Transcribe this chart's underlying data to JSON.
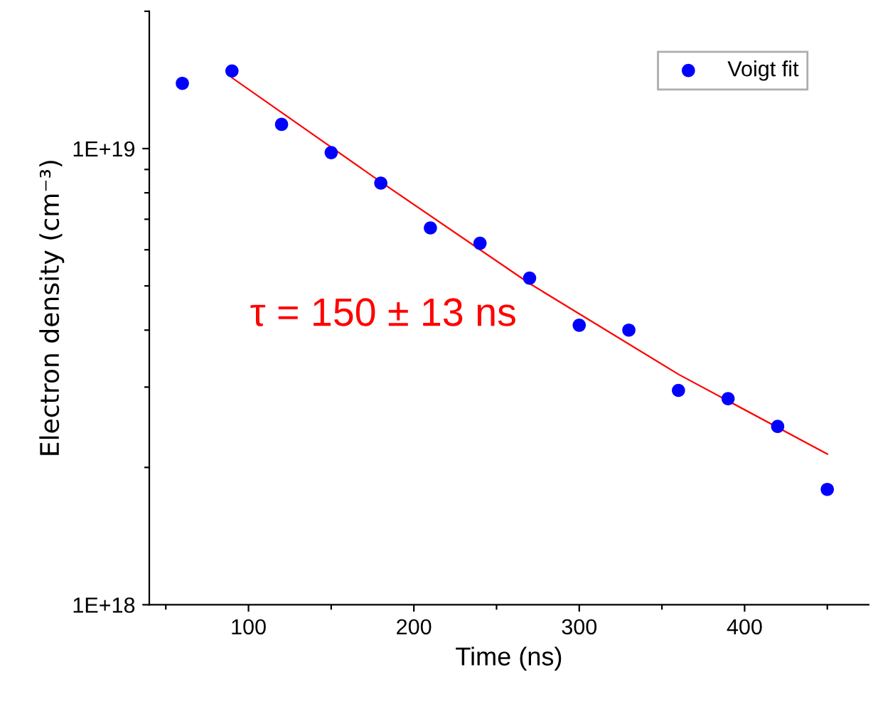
{
  "chart_data": {
    "type": "scatter",
    "xlabel": "Time (ns)",
    "ylabel": "Electron density (cm⁻³)",
    "annotations": [
      "τ = 150 ± 13 ns"
    ],
    "series": [
      {
        "name": "Voigt fit",
        "color": "#0000ff",
        "marker": "circle",
        "x": [
          60,
          90,
          120,
          150,
          180,
          210,
          240,
          270,
          300,
          330,
          360,
          390,
          420,
          450
        ],
        "values": [
          1.39e+19,
          1.48e+19,
          1.13e+19,
          9.8e+18,
          8.4e+18,
          6.7e+18,
          6.2e+18,
          5.2e+18,
          4.1e+18,
          4e+18,
          2.95e+18,
          2.83e+18,
          2.46e+18,
          1.79e+18
        ]
      },
      {
        "type": "line",
        "color": "#ff0000",
        "x": [
          90,
          180,
          270,
          360,
          450
        ],
        "values": [
          1.43e+19,
          8.45e+18,
          5.06e+18,
          3.2e+18,
          2.14e+18
        ]
      }
    ],
    "xlim": [
      40,
      475
    ],
    "ylim": [
      1e+18,
      2e+19
    ],
    "log": "y",
    "xticks": [
      {
        "value": 50,
        "label": null
      },
      100,
      {
        "value": 150,
        "label": null
      },
      200,
      {
        "value": 250,
        "label": null
      },
      300,
      {
        "value": 350,
        "label": null
      },
      400,
      {
        "value": 450,
        "label": null
      }
    ],
    "yticks": [
      {
        "value": 1e+18,
        "label": "1E+18"
      },
      {
        "value": 2e+18,
        "label": null
      },
      {
        "value": 3e+18,
        "label": null
      },
      {
        "value": 4e+18,
        "label": null
      },
      {
        "value": 5e+18,
        "label": null
      },
      {
        "value": 6e+18,
        "label": null
      },
      {
        "value": 7e+18,
        "label": null
      },
      {
        "value": 8e+18,
        "label": null
      },
      {
        "value": 9e+18,
        "label": null
      },
      {
        "value": 1e+19,
        "label": "1E+19"
      },
      {
        "value": 2e+19,
        "label": null
      }
    ],
    "grid": false,
    "legend": "top right"
  }
}
